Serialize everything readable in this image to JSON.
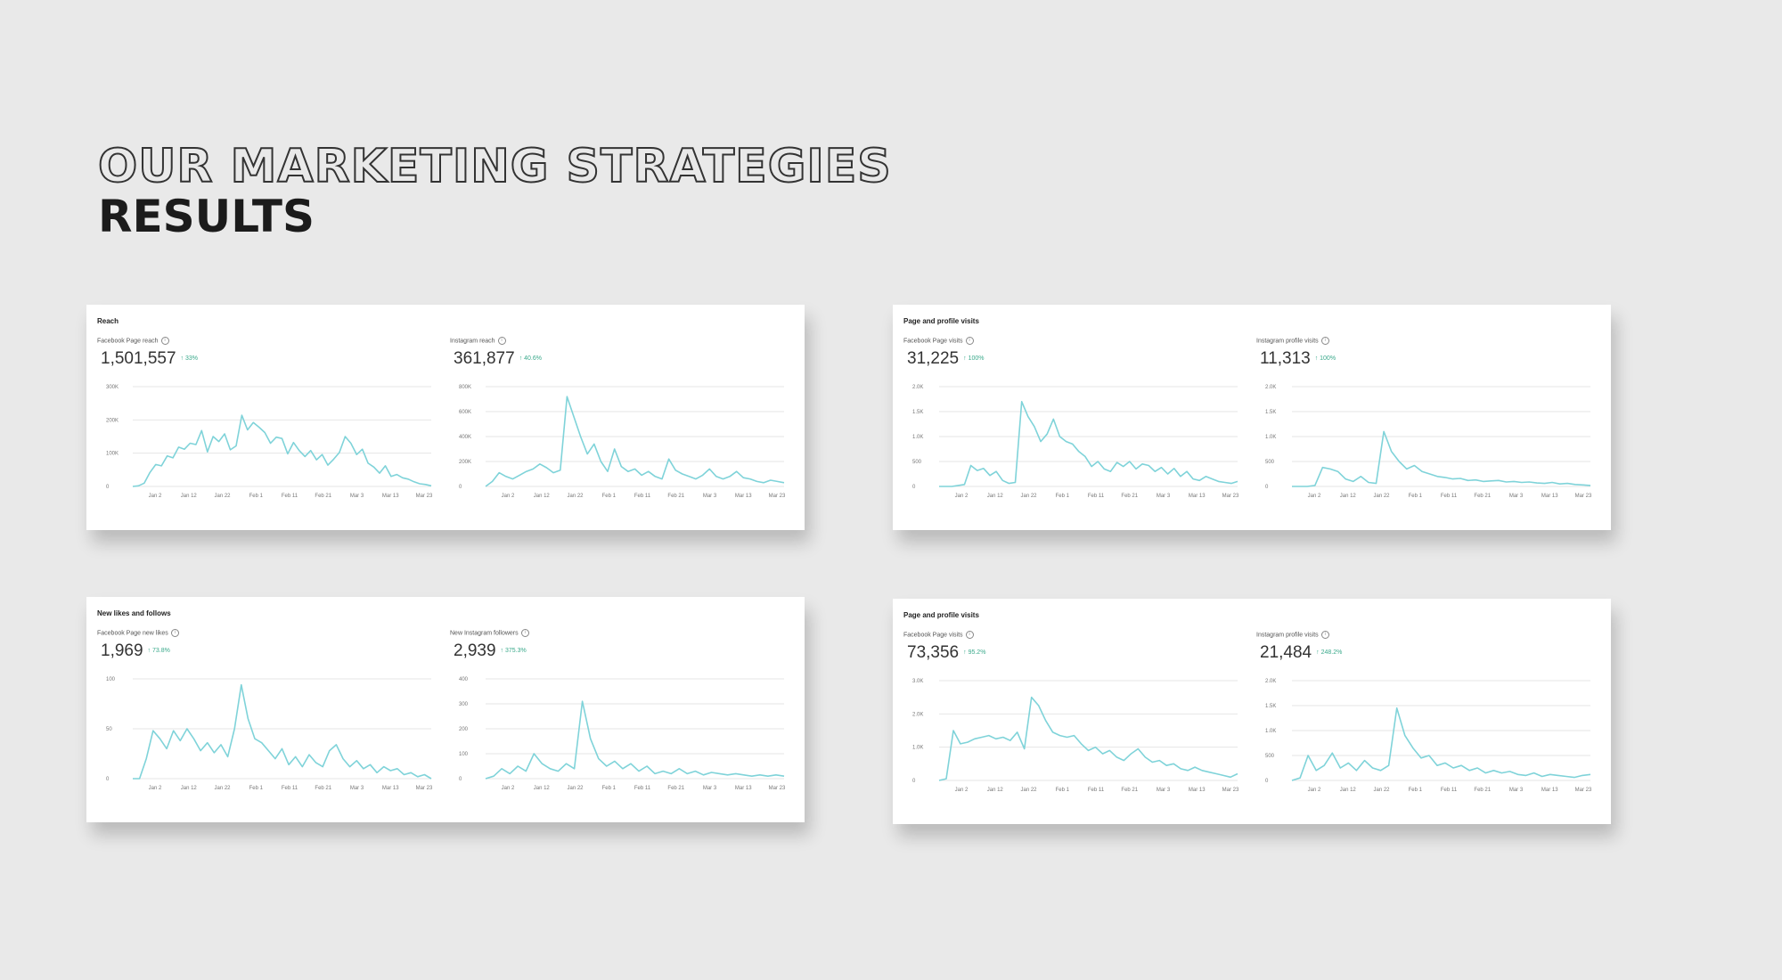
{
  "heading": {
    "line1": "OUR MARKETING STRATEGIES",
    "line2": "RESULTS"
  },
  "colors": {
    "line": "#7fd3d9",
    "grid": "#e6e6e6",
    "change": "#3aa98b",
    "background": "#e9e9e9"
  },
  "icons": {
    "info": "info-icon"
  },
  "chart_data": [
    {
      "type": "line",
      "title": "Reach",
      "panels": [
        {
          "label": "Facebook Page reach",
          "value": "1,501,557",
          "change": "↑ 33%",
          "yticks": [
            "300K",
            "200K",
            "100K",
            "0"
          ],
          "ylim": [
            0,
            300000
          ],
          "xticks": [
            "Jan 2",
            "Jan 12",
            "Jan 22",
            "Feb 1",
            "Feb 11",
            "Feb 21",
            "Mar 3",
            "Mar 13",
            "Mar 23"
          ],
          "series": [
            {
              "values": [
                0,
                2000,
                10000,
                42000,
                66000,
                62000,
                92000,
                86000,
                118000,
                112000,
                130000,
                126000,
                168000,
                104000,
                150000,
                135000,
                158000,
                110000,
                122000,
                214000,
                170000,
                192000,
                178000,
                162000,
                130000,
                148000,
                144000,
                98000,
                132000,
                108000,
                90000,
                108000,
                80000,
                96000,
                64000,
                82000,
                102000,
                150000,
                130000,
                96000,
                112000,
                70000,
                58000,
                40000,
                62000,
                30000,
                36000,
                26000,
                22000,
                14000,
                8000,
                6000,
                2000
              ]
            }
          ]
        },
        {
          "label": "Instagram reach",
          "value": "361,877",
          "change": "↑ 40.6%",
          "yticks": [
            "800K",
            "600K",
            "400K",
            "200K",
            "0"
          ],
          "ylim": [
            0,
            800000
          ],
          "xticks": [
            "Jan 2",
            "Jan 12",
            "Jan 22",
            "Feb 1",
            "Feb 11",
            "Feb 21",
            "Mar 3",
            "Mar 13",
            "Mar 23"
          ],
          "series": [
            {
              "values": [
                0,
                40000,
                110000,
                80000,
                60000,
                90000,
                120000,
                140000,
                180000,
                150000,
                110000,
                130000,
                720000,
                560000,
                400000,
                260000,
                340000,
                200000,
                120000,
                300000,
                160000,
                120000,
                140000,
                90000,
                120000,
                80000,
                60000,
                220000,
                130000,
                100000,
                80000,
                60000,
                90000,
                140000,
                80000,
                60000,
                80000,
                120000,
                70000,
                60000,
                40000,
                30000,
                50000,
                40000,
                30000
              ]
            }
          ]
        }
      ]
    },
    {
      "type": "line",
      "title": "Page and profile visits",
      "panels": [
        {
          "label": "Facebook Page visits",
          "value": "31,225",
          "change": "↑ 100%",
          "yticks": [
            "2.0K",
            "1.5K",
            "1.0K",
            "500",
            "0"
          ],
          "ylim": [
            0,
            2000
          ],
          "xticks": [
            "Jan 2",
            "Jan 12",
            "Jan 22",
            "Feb 1",
            "Feb 11",
            "Feb 21",
            "Mar 3",
            "Mar 13",
            "Mar 23"
          ],
          "series": [
            {
              "values": [
                0,
                0,
                0,
                20,
                40,
                420,
                320,
                360,
                220,
                300,
                120,
                60,
                80,
                1700,
                1400,
                1200,
                900,
                1050,
                1350,
                1000,
                900,
                850,
                700,
                600,
                400,
                500,
                350,
                300,
                480,
                400,
                500,
                350,
                450,
                420,
                300,
                380,
                250,
                360,
                200,
                300,
                150,
                120,
                200,
                150,
                100,
                80,
                60,
                100
              ]
            }
          ]
        },
        {
          "label": "Instagram profile visits",
          "value": "11,313",
          "change": "↑ 100%",
          "yticks": [
            "2.0K",
            "1.5K",
            "1.0K",
            "500",
            "0"
          ],
          "ylim": [
            0,
            2000
          ],
          "xticks": [
            "Jan 2",
            "Jan 12",
            "Jan 22",
            "Feb 1",
            "Feb 11",
            "Feb 21",
            "Mar 3",
            "Mar 13",
            "Mar 23"
          ],
          "series": [
            {
              "values": [
                0,
                0,
                0,
                20,
                380,
                350,
                300,
                150,
                100,
                200,
                80,
                60,
                1100,
                700,
                500,
                350,
                420,
                300,
                250,
                200,
                180,
                150,
                160,
                120,
                130,
                100,
                110,
                120,
                90,
                100,
                80,
                90,
                70,
                60,
                80,
                50,
                60,
                40,
                30,
                20
              ]
            }
          ]
        }
      ]
    },
    {
      "type": "line",
      "title": "New likes and follows",
      "panels": [
        {
          "label": "Facebook Page new likes",
          "value": "1,969",
          "change": "↑ 73.8%",
          "yticks": [
            "100",
            "50",
            "0"
          ],
          "ylim": [
            0,
            100
          ],
          "xticks": [
            "Jan 2",
            "Jan 12",
            "Jan 22",
            "Feb 1",
            "Feb 11",
            "Feb 21",
            "Mar 3",
            "Mar 13",
            "Mar 23"
          ],
          "series": [
            {
              "values": [
                0,
                0,
                20,
                48,
                40,
                30,
                48,
                38,
                50,
                40,
                28,
                36,
                26,
                34,
                22,
                50,
                94,
                60,
                40,
                36,
                28,
                20,
                30,
                14,
                22,
                12,
                24,
                16,
                12,
                28,
                34,
                20,
                12,
                18,
                10,
                14,
                6,
                12,
                8,
                10,
                4,
                6,
                2,
                4,
                0
              ]
            }
          ]
        },
        {
          "label": "New Instagram followers",
          "value": "2,939",
          "change": "↑ 375.3%",
          "yticks": [
            "400",
            "300",
            "200",
            "100",
            "0"
          ],
          "ylim": [
            0,
            400
          ],
          "xticks": [
            "Jan 2",
            "Jan 12",
            "Jan 22",
            "Feb 1",
            "Feb 11",
            "Feb 21",
            "Mar 3",
            "Mar 13",
            "Mar 23"
          ],
          "series": [
            {
              "values": [
                0,
                10,
                40,
                20,
                50,
                30,
                100,
                60,
                40,
                30,
                60,
                40,
                310,
                160,
                80,
                50,
                70,
                40,
                60,
                30,
                50,
                20,
                30,
                20,
                40,
                20,
                30,
                15,
                25,
                20,
                15,
                20,
                15,
                10,
                15,
                10,
                15,
                10
              ]
            }
          ]
        }
      ]
    },
    {
      "type": "line",
      "title": "Page and profile visits",
      "panels": [
        {
          "label": "Facebook Page visits",
          "value": "73,356",
          "change": "↑ 95.2%",
          "yticks": [
            "3.0K",
            "2.0K",
            "1.0K",
            "0"
          ],
          "ylim": [
            0,
            3000
          ],
          "xticks": [
            "Jan 2",
            "Jan 12",
            "Jan 22",
            "Feb 1",
            "Feb 11",
            "Feb 21",
            "Mar 3",
            "Mar 13",
            "Mar 23"
          ],
          "series": [
            {
              "values": [
                0,
                50,
                1500,
                1100,
                1150,
                1250,
                1300,
                1350,
                1250,
                1300,
                1200,
                1450,
                950,
                2500,
                2250,
                1800,
                1450,
                1350,
                1300,
                1350,
                1100,
                900,
                1000,
                800,
                900,
                700,
                600,
                800,
                950,
                700,
                550,
                600,
                450,
                500,
                350,
                300,
                400,
                300,
                250,
                200,
                150,
                100,
                200
              ]
            }
          ]
        },
        {
          "label": "Instagram profile visits",
          "value": "21,484",
          "change": "↑ 248.2%",
          "yticks": [
            "2.0K",
            "1.5K",
            "1.0K",
            "500",
            "0"
          ],
          "ylim": [
            0,
            2000
          ],
          "xticks": [
            "Jan 2",
            "Jan 12",
            "Jan 22",
            "Feb 1",
            "Feb 11",
            "Feb 21",
            "Mar 3",
            "Mar 13",
            "Mar 23"
          ],
          "series": [
            {
              "values": [
                0,
                50,
                500,
                200,
                300,
                550,
                250,
                350,
                200,
                400,
                250,
                200,
                300,
                1450,
                900,
                650,
                450,
                500,
                300,
                350,
                250,
                300,
                200,
                250,
                150,
                200,
                150,
                180,
                120,
                100,
                150,
                80,
                120,
                100,
                80,
                60,
                100,
                120
              ]
            }
          ]
        }
      ]
    }
  ]
}
